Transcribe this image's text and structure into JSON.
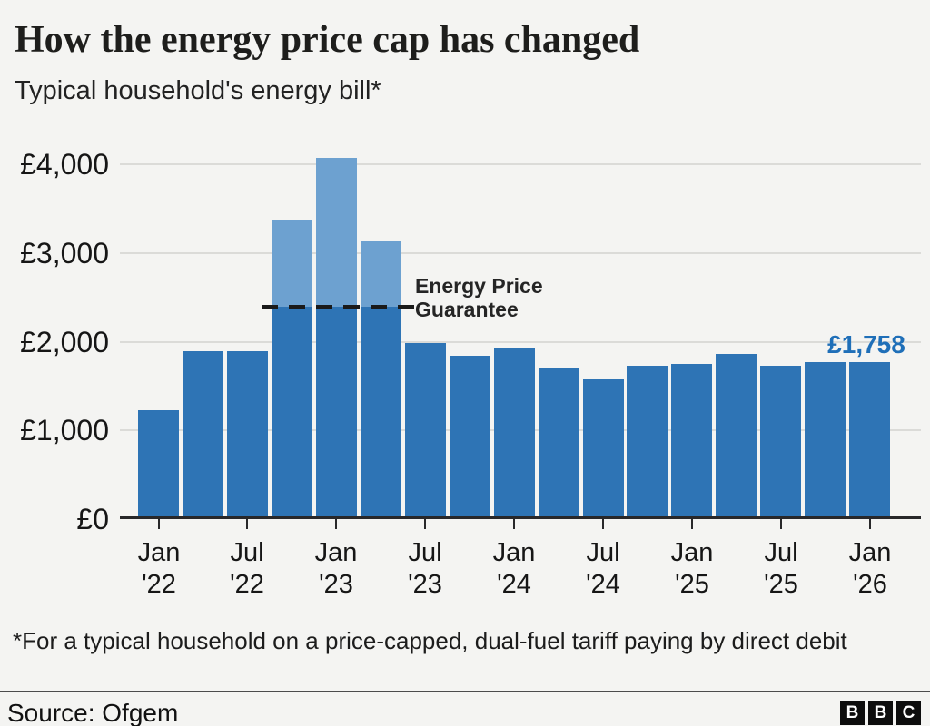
{
  "chart_data": {
    "type": "bar",
    "title": "How the energy price cap has changed",
    "subtitle": "Typical household's energy bill*",
    "xlabel": "",
    "ylabel": "",
    "unit": "GBP",
    "ylim": [
      0,
      4200
    ],
    "grid": true,
    "legend": "none",
    "categories": [
      "Jan '22",
      "Apr '22",
      "Jul '22",
      "Oct '22",
      "Jan '23",
      "Apr '23",
      "Jul '23",
      "Oct '23",
      "Jan '24",
      "Apr '24",
      "Jul '24",
      "Oct '24",
      "Jan '25",
      "Apr '25",
      "Jul '25",
      "Oct '25",
      "Jan '26"
    ],
    "values": [
      1216,
      1880,
      1880,
      3370,
      4059,
      3116,
      1976,
      1834,
      1928,
      1690,
      1568,
      1717,
      1738,
      1849,
      1720,
      1755,
      1758
    ],
    "epg_level": 2380,
    "epg_bar_indices": [
      3,
      4,
      5
    ],
    "y_ticks": [
      0,
      1000,
      2000,
      3000,
      4000
    ],
    "y_tick_labels": [
      "£0",
      "£1,000",
      "£2,000",
      "£3,000",
      "£4,000"
    ],
    "x_tick_indices": [
      0,
      2,
      4,
      6,
      8,
      10,
      12,
      14,
      16
    ],
    "x_tick_labels": [
      "Jan\n'22",
      "Jul\n'22",
      "Jan\n'23",
      "Jul\n'23",
      "Jan\n'24",
      "Jul\n'24",
      "Jan\n'25",
      "Jul\n'25",
      "Jan\n'26"
    ],
    "annotation": {
      "line1": "Energy Price",
      "line2": "Guarantee"
    },
    "last_value_label": "£1,758",
    "colors": {
      "bar": "#2e74b5",
      "bar_above_epg": "#6da1d0",
      "value_label": "#1f6fb8",
      "dashed_line": "#1a1a1a"
    }
  },
  "footnote": "*For a typical household on a price-capped, dual-fuel tariff paying by direct debit",
  "source": {
    "label": "Source: Ofgem"
  },
  "logo": {
    "letters": [
      "B",
      "B",
      "C"
    ]
  }
}
